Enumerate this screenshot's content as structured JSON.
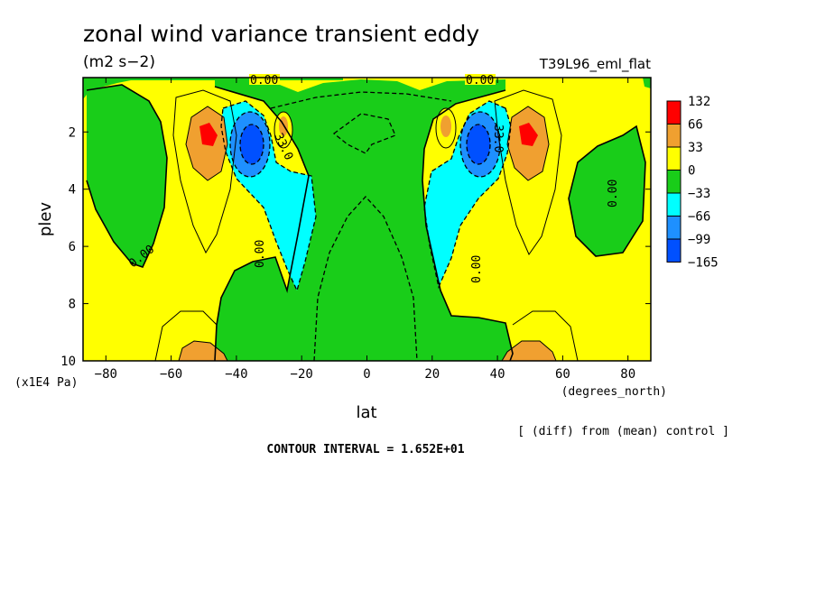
{
  "chart_data": {
    "type": "heatmap",
    "title": "zonal wind variance transient eddy",
    "units": "(m2 s−2)",
    "run_label": "T39L96_eml_flat",
    "xlabel": "lat",
    "x_units": "(degrees_north)",
    "ylabel": "plev",
    "y_units": "(x1E4 Pa)",
    "xlim": [
      -87,
      87
    ],
    "ylim": [
      10,
      0.1
    ],
    "x_ticks": [
      -80,
      -60,
      -40,
      -20,
      0,
      20,
      40,
      60,
      80
    ],
    "y_ticks": [
      2,
      4,
      6,
      8,
      10
    ],
    "contour_interval_text": "CONTOUR INTERVAL = 1.652E+01",
    "difference_note": "[ (diff) from (mean) control ]",
    "colorbar": {
      "levels": [
        "132",
        "66",
        "33",
        "0",
        "−33",
        "−66",
        "−99",
        "−165"
      ],
      "colors": [
        "#ff0000",
        "#f0a030",
        "#ffff00",
        "#19cd19",
        "#00ffff",
        "#1e90ff",
        "#0050ff"
      ]
    },
    "contour_labels": [
      {
        "text": "0.00",
        "lat": -35,
        "plev": 0.12
      },
      {
        "text": "0.00",
        "lat": 35,
        "plev": 0.12
      },
      {
        "text": "0.00",
        "lat": -72,
        "plev": 6.4
      },
      {
        "text": "0.00",
        "lat": -34,
        "plev": 6.2
      },
      {
        "text": "0.00",
        "lat": 34,
        "plev": 6.8
      },
      {
        "text": "0.00",
        "lat": 75,
        "plev": 4.2
      },
      {
        "text": "33.0",
        "lat": -30,
        "plev": 2.2
      },
      {
        "text": "33.0",
        "lat": 39,
        "plev": 2.2
      }
    ],
    "extrema": {
      "positive_max": [
        {
          "lat": -50,
          "plev": 2.3,
          "value_range": "132"
        },
        {
          "lat": 48,
          "plev": 2.3,
          "value_range": "132"
        }
      ],
      "negative_min": [
        {
          "lat": -37,
          "plev": 2.5,
          "value_range": "-99"
        },
        {
          "lat": 36,
          "plev": 2.5,
          "value_range": "-99"
        }
      ]
    }
  }
}
